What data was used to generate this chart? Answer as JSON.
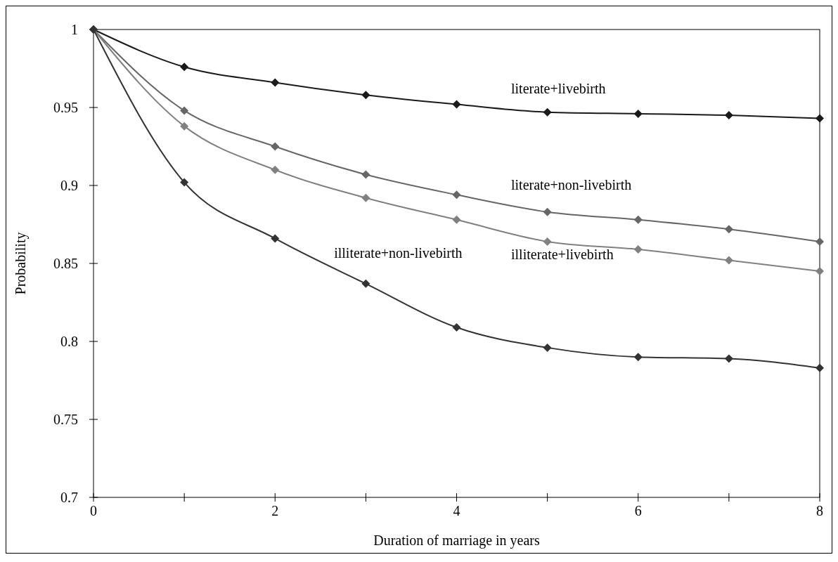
{
  "chart_data": {
    "type": "line",
    "xlabel": "Duration of marriage in years",
    "ylabel": "Probability",
    "x": [
      0,
      1,
      2,
      3,
      4,
      5,
      6,
      7,
      8
    ],
    "xlim": [
      0,
      8
    ],
    "xticks": [
      0,
      {
        "value": 1,
        "label": null
      },
      2,
      {
        "value": 3,
        "label": null
      },
      4,
      {
        "value": 5,
        "label": null
      },
      6,
      {
        "value": 7,
        "label": null
      },
      8
    ],
    "ylim": [
      0.7,
      1
    ],
    "yticks": [
      0.7,
      0.75,
      0.8,
      0.85,
      0.9,
      0.95,
      1
    ],
    "grid": false,
    "marker": "diamond",
    "line_style": "solid",
    "series": [
      {
        "name": "literate+livebirth",
        "color": "#1a1a1a",
        "values": [
          1,
          0.976,
          0.966,
          0.958,
          0.952,
          0.947,
          0.946,
          0.945,
          0.943
        ]
      },
      {
        "name": "literate+non-livebirth",
        "color": "#666666",
        "values": [
          1,
          0.948,
          0.925,
          0.907,
          0.894,
          0.883,
          0.878,
          0.872,
          0.864
        ]
      },
      {
        "name": "illiterate+livebirth",
        "color": "#808080",
        "values": [
          1,
          0.938,
          0.91,
          0.892,
          0.878,
          0.864,
          0.859,
          0.852,
          0.845
        ]
      },
      {
        "name": "illiterate+non-livebirth",
        "color": "#333333",
        "values": [
          1,
          0.902,
          0.866,
          0.837,
          0.809,
          0.796,
          0.79,
          0.789,
          0.783
        ]
      }
    ]
  }
}
